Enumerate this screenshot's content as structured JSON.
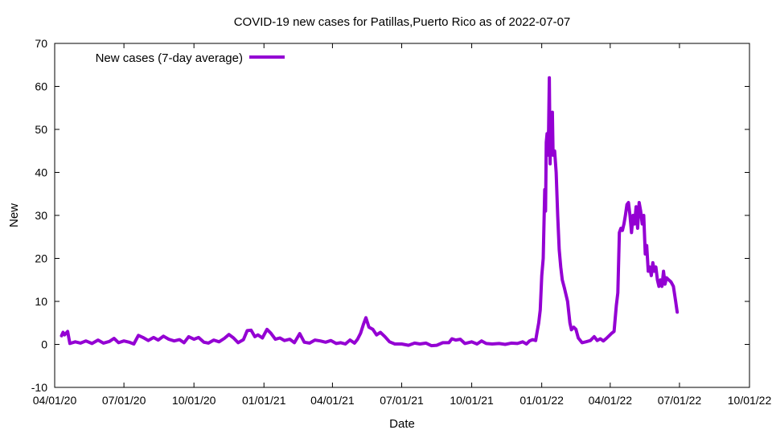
{
  "chart_data": {
    "type": "line",
    "title": "COVID-19 new cases for Patillas,Puerto Rico as of 2022-07-07",
    "xlabel": "Date",
    "ylabel": "New",
    "ylim": [
      -10,
      70
    ],
    "xlim": [
      "2020-04-01",
      "2022-10-01"
    ],
    "y_ticks": [
      "-10",
      "0",
      "10",
      "20",
      "30",
      "40",
      "50",
      "60",
      "70"
    ],
    "x_ticks": [
      {
        "date": "2020-04-01",
        "label": "04/01/20"
      },
      {
        "date": "2020-07-01",
        "label": "07/01/20"
      },
      {
        "date": "2020-10-01",
        "label": "10/01/20"
      },
      {
        "date": "2021-01-01",
        "label": "01/01/21"
      },
      {
        "date": "2021-04-01",
        "label": "04/01/21"
      },
      {
        "date": "2021-07-01",
        "label": "07/01/21"
      },
      {
        "date": "2021-10-01",
        "label": "10/01/21"
      },
      {
        "date": "2022-01-01",
        "label": "01/01/22"
      },
      {
        "date": "2022-04-01",
        "label": "04/01/22"
      },
      {
        "date": "2022-07-01",
        "label": "07/01/22"
      },
      {
        "date": "2022-10-01",
        "label": "10/01/22"
      }
    ],
    "grid": false,
    "legend_position": "top-left",
    "series": [
      {
        "name": "New cases (7-day average)",
        "color": "#9400d3",
        "points": [
          [
            "2020-04-10",
            2
          ],
          [
            "2020-04-12",
            2.8
          ],
          [
            "2020-04-14",
            2.2
          ],
          [
            "2020-04-18",
            3
          ],
          [
            "2020-04-21",
            0.2
          ],
          [
            "2020-04-28",
            0.6
          ],
          [
            "2020-05-05",
            0.3
          ],
          [
            "2020-05-12",
            0.8
          ],
          [
            "2020-05-20",
            0.2
          ],
          [
            "2020-05-28",
            1
          ],
          [
            "2020-06-04",
            0.3
          ],
          [
            "2020-06-12",
            0.7
          ],
          [
            "2020-06-18",
            1.4
          ],
          [
            "2020-06-24",
            0.4
          ],
          [
            "2020-07-01",
            0.8
          ],
          [
            "2020-07-08",
            0.5
          ],
          [
            "2020-07-14",
            0.1
          ],
          [
            "2020-07-20",
            2.1
          ],
          [
            "2020-07-26",
            1.6
          ],
          [
            "2020-08-02",
            0.9
          ],
          [
            "2020-08-09",
            1.6
          ],
          [
            "2020-08-15",
            1
          ],
          [
            "2020-08-22",
            1.9
          ],
          [
            "2020-08-29",
            1.2
          ],
          [
            "2020-09-05",
            0.8
          ],
          [
            "2020-09-12",
            1.1
          ],
          [
            "2020-09-18",
            0.4
          ],
          [
            "2020-09-24",
            1.8
          ],
          [
            "2020-10-01",
            1.2
          ],
          [
            "2020-10-07",
            1.6
          ],
          [
            "2020-10-14",
            0.5
          ],
          [
            "2020-10-20",
            0.3
          ],
          [
            "2020-10-27",
            1
          ],
          [
            "2020-11-03",
            0.6
          ],
          [
            "2020-11-10",
            1.4
          ],
          [
            "2020-11-16",
            2.3
          ],
          [
            "2020-11-22",
            1.5
          ],
          [
            "2020-11-28",
            0.4
          ],
          [
            "2020-12-05",
            1.1
          ],
          [
            "2020-12-10",
            3.2
          ],
          [
            "2020-12-15",
            3.3
          ],
          [
            "2020-12-20",
            1.8
          ],
          [
            "2020-12-24",
            2.2
          ],
          [
            "2020-12-30",
            1.5
          ],
          [
            "2021-01-05",
            3.5
          ],
          [
            "2021-01-10",
            2.6
          ],
          [
            "2021-01-16",
            1.2
          ],
          [
            "2021-01-22",
            1.5
          ],
          [
            "2021-01-28",
            0.9
          ],
          [
            "2021-02-04",
            1.2
          ],
          [
            "2021-02-10",
            0.4
          ],
          [
            "2021-02-17",
            2.5
          ],
          [
            "2021-02-23",
            0.5
          ],
          [
            "2021-03-02",
            0.3
          ],
          [
            "2021-03-09",
            1
          ],
          [
            "2021-03-16",
            0.8
          ],
          [
            "2021-03-23",
            0.5
          ],
          [
            "2021-03-30",
            0.9
          ],
          [
            "2021-04-06",
            0.2
          ],
          [
            "2021-04-12",
            0.4
          ],
          [
            "2021-04-18",
            0.1
          ],
          [
            "2021-04-24",
            1
          ],
          [
            "2021-04-30",
            0.3
          ],
          [
            "2021-05-04",
            1.2
          ],
          [
            "2021-05-08",
            2.6
          ],
          [
            "2021-05-12",
            4.8
          ],
          [
            "2021-05-15",
            6.2
          ],
          [
            "2021-05-19",
            4
          ],
          [
            "2021-05-24",
            3.5
          ],
          [
            "2021-05-29",
            2.2
          ],
          [
            "2021-06-03",
            2.8
          ],
          [
            "2021-06-09",
            1.8
          ],
          [
            "2021-06-15",
            0.6
          ],
          [
            "2021-06-22",
            0.1
          ],
          [
            "2021-07-01",
            0.1
          ],
          [
            "2021-07-10",
            -0.2
          ],
          [
            "2021-07-18",
            0.3
          ],
          [
            "2021-07-25",
            0.1
          ],
          [
            "2021-08-02",
            0.3
          ],
          [
            "2021-08-09",
            -0.3
          ],
          [
            "2021-08-16",
            -0.2
          ],
          [
            "2021-08-24",
            0.4
          ],
          [
            "2021-09-01",
            0.4
          ],
          [
            "2021-09-05",
            1.3
          ],
          [
            "2021-09-10",
            1
          ],
          [
            "2021-09-16",
            1.2
          ],
          [
            "2021-09-22",
            0.2
          ],
          [
            "2021-10-01",
            0.6
          ],
          [
            "2021-10-08",
            0.1
          ],
          [
            "2021-10-14",
            0.8
          ],
          [
            "2021-10-20",
            0.2
          ],
          [
            "2021-10-28",
            0.1
          ],
          [
            "2021-11-06",
            0.2
          ],
          [
            "2021-11-14",
            0
          ],
          [
            "2021-11-22",
            0.3
          ],
          [
            "2021-11-30",
            0.2
          ],
          [
            "2021-12-07",
            0.6
          ],
          [
            "2021-12-12",
            0.1
          ],
          [
            "2021-12-16",
            0.8
          ],
          [
            "2021-12-20",
            1.1
          ],
          [
            "2021-12-24",
            0.9
          ],
          [
            "2021-12-26",
            3
          ],
          [
            "2021-12-28",
            5
          ],
          [
            "2021-12-30",
            8
          ],
          [
            "2022-01-01",
            16
          ],
          [
            "2022-01-03",
            20
          ],
          [
            "2022-01-05",
            36
          ],
          [
            "2022-01-06",
            31
          ],
          [
            "2022-01-07",
            47
          ],
          [
            "2022-01-08",
            49
          ],
          [
            "2022-01-09",
            44
          ],
          [
            "2022-01-10",
            50
          ],
          [
            "2022-01-11",
            62
          ],
          [
            "2022-01-12",
            42
          ],
          [
            "2022-01-13",
            53
          ],
          [
            "2022-01-14",
            50
          ],
          [
            "2022-01-15",
            54
          ],
          [
            "2022-01-16",
            44
          ],
          [
            "2022-01-18",
            45
          ],
          [
            "2022-01-20",
            40
          ],
          [
            "2022-01-22",
            30
          ],
          [
            "2022-01-24",
            22
          ],
          [
            "2022-01-26",
            18
          ],
          [
            "2022-01-28",
            15
          ],
          [
            "2022-01-31",
            13
          ],
          [
            "2022-02-04",
            10
          ],
          [
            "2022-02-07",
            5
          ],
          [
            "2022-02-09",
            3.4
          ],
          [
            "2022-02-12",
            4
          ],
          [
            "2022-02-15",
            3.5
          ],
          [
            "2022-02-18",
            1.5
          ],
          [
            "2022-02-23",
            0.4
          ],
          [
            "2022-02-28",
            0.6
          ],
          [
            "2022-03-06",
            0.9
          ],
          [
            "2022-03-11",
            1.8
          ],
          [
            "2022-03-15",
            0.9
          ],
          [
            "2022-03-19",
            1.3
          ],
          [
            "2022-03-23",
            0.8
          ],
          [
            "2022-03-27",
            1.4
          ],
          [
            "2022-03-31",
            2.1
          ],
          [
            "2022-04-03",
            2.6
          ],
          [
            "2022-04-06",
            3
          ],
          [
            "2022-04-09",
            9
          ],
          [
            "2022-04-11",
            12
          ],
          [
            "2022-04-13",
            26
          ],
          [
            "2022-04-15",
            27
          ],
          [
            "2022-04-17",
            26.5
          ],
          [
            "2022-04-19",
            28
          ],
          [
            "2022-04-21",
            30
          ],
          [
            "2022-04-23",
            32.5
          ],
          [
            "2022-04-25",
            33
          ],
          [
            "2022-04-27",
            30
          ],
          [
            "2022-04-29",
            26
          ],
          [
            "2022-05-01",
            30
          ],
          [
            "2022-05-03",
            28
          ],
          [
            "2022-05-05",
            32
          ],
          [
            "2022-05-07",
            27
          ],
          [
            "2022-05-09",
            33
          ],
          [
            "2022-05-11",
            31
          ],
          [
            "2022-05-13",
            28
          ],
          [
            "2022-05-15",
            30
          ],
          [
            "2022-05-17",
            21
          ],
          [
            "2022-05-19",
            23
          ],
          [
            "2022-05-21",
            17
          ],
          [
            "2022-05-23",
            18
          ],
          [
            "2022-05-25",
            16
          ],
          [
            "2022-05-27",
            19
          ],
          [
            "2022-05-29",
            17
          ],
          [
            "2022-05-31",
            18
          ],
          [
            "2022-06-02",
            15
          ],
          [
            "2022-06-04",
            13.5
          ],
          [
            "2022-06-06",
            15
          ],
          [
            "2022-06-08",
            13.5
          ],
          [
            "2022-06-10",
            17
          ],
          [
            "2022-06-12",
            14
          ],
          [
            "2022-06-14",
            15.5
          ],
          [
            "2022-06-17",
            15
          ],
          [
            "2022-06-20",
            14.5
          ],
          [
            "2022-06-23",
            13.5
          ],
          [
            "2022-06-26",
            10
          ],
          [
            "2022-06-28",
            7.5
          ]
        ]
      }
    ]
  }
}
